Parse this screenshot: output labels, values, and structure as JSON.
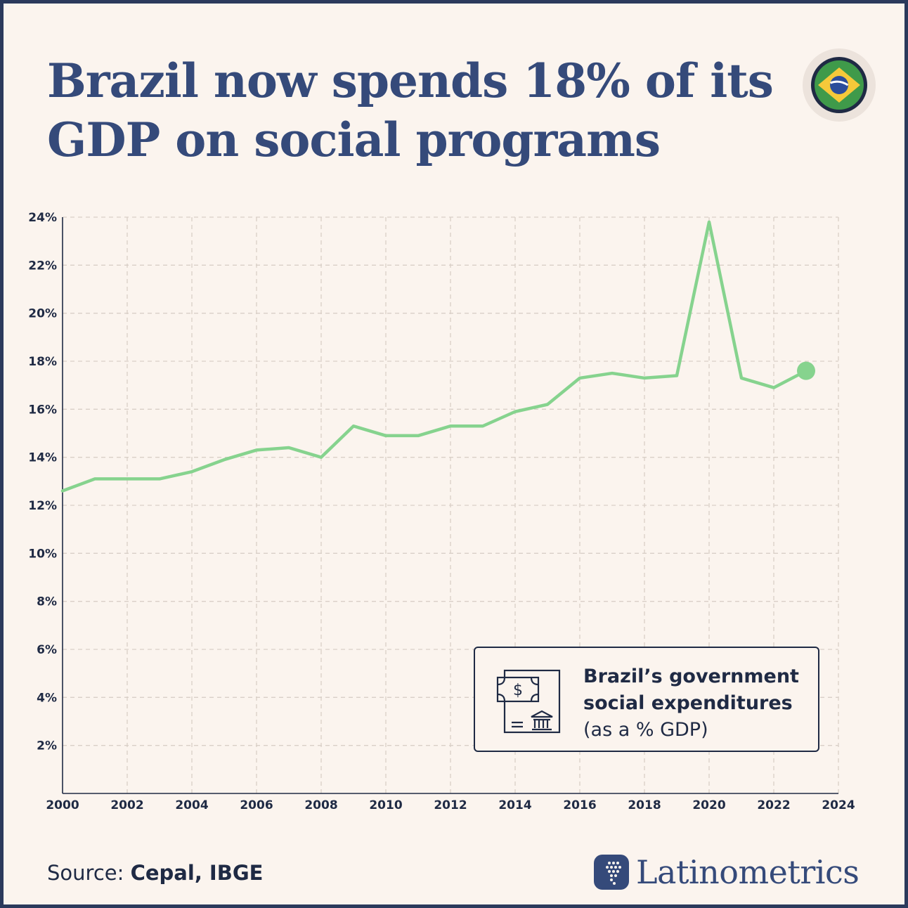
{
  "title": "Brazil now spends 18% of its GDP on social programs",
  "icons": {
    "flag": "brazil-flag-icon",
    "legend": "money-bank-icon",
    "brand": "latin-america-map-icon"
  },
  "legend": {
    "line1": "Brazil’s government",
    "line2": "social expenditures",
    "line3": "(as a % GDP)"
  },
  "source": {
    "label": "Source:",
    "value": "Cepal, IBGE"
  },
  "brand": {
    "name": "Latinometrics"
  },
  "colors": {
    "line": "#86d38e",
    "title": "#354a7a",
    "text": "#1f2a44",
    "background": "#fbf4ee",
    "frame": "#2b3a5c"
  },
  "chart_data": {
    "type": "line",
    "title": "",
    "xlabel": "",
    "ylabel": "",
    "xlim": [
      2000,
      2024
    ],
    "ylim": [
      0,
      24
    ],
    "grid": true,
    "x_ticks": [
      "2000",
      "2002",
      "2004",
      "2006",
      "2008",
      "2010",
      "2012",
      "2014",
      "2016",
      "2018",
      "2020",
      "2022",
      "2024"
    ],
    "y_ticks": [
      "2%",
      "4%",
      "6%",
      "8%",
      "10%",
      "12%",
      "14%",
      "16%",
      "18%",
      "20%",
      "22%",
      "24%"
    ],
    "series": [
      {
        "x": [
          2000,
          2001,
          2002,
          2003,
          2004,
          2005,
          2006,
          2007,
          2008,
          2009,
          2010,
          2011,
          2012,
          2013,
          2014,
          2015,
          2016,
          2017,
          2018,
          2019,
          2020,
          2021,
          2022,
          2023
        ],
        "values": [
          12.6,
          13.1,
          13.1,
          13.1,
          13.4,
          13.9,
          14.3,
          14.4,
          14.0,
          15.3,
          14.9,
          14.9,
          15.3,
          15.3,
          15.9,
          16.2,
          17.3,
          17.5,
          17.3,
          17.4,
          23.8,
          17.3,
          16.9,
          17.6
        ]
      }
    ]
  }
}
